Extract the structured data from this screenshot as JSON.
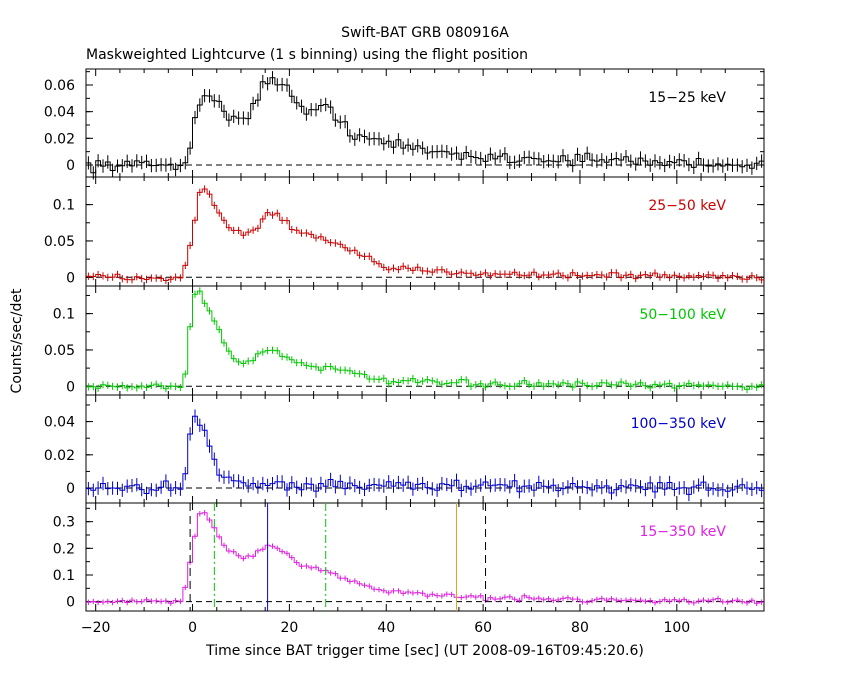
{
  "chart_data": {
    "type": "line",
    "title": "Swift-BAT GRB 080916A",
    "subtitle": "Maskweighted Lightcurve (1 s binning) using the flight position",
    "xlabel": "Time since BAT trigger time [sec] (UT 2008-09-16T09:45:20.6)",
    "ylabel": "Counts/sec/det",
    "xlim": [
      -22,
      118
    ],
    "xticks": [
      "−20",
      "0",
      "20",
      "40",
      "60",
      "80",
      "100"
    ],
    "panels": [
      {
        "name": "15−25 keV",
        "color": "#000000",
        "ylim": [
          -0.009,
          0.072
        ],
        "yticks": [
          0,
          0.02,
          0.04,
          0.06
        ],
        "ytick_labels": [
          "0",
          "0.02",
          "0.04",
          "0.06"
        ],
        "profile": [
          [
            -22,
            0.0
          ],
          [
            -1,
            0.0
          ],
          [
            0,
            0.032
          ],
          [
            1,
            0.045
          ],
          [
            3,
            0.055
          ],
          [
            5,
            0.046
          ],
          [
            7,
            0.036
          ],
          [
            11,
            0.036
          ],
          [
            13,
            0.048
          ],
          [
            15,
            0.062
          ],
          [
            18,
            0.064
          ],
          [
            20,
            0.056
          ],
          [
            22,
            0.043
          ],
          [
            25,
            0.037
          ],
          [
            27,
            0.045
          ],
          [
            29,
            0.04
          ],
          [
            33,
            0.024
          ],
          [
            40,
            0.016
          ],
          [
            50,
            0.01
          ],
          [
            60,
            0.006
          ],
          [
            80,
            0.004
          ],
          [
            118,
            0.0
          ]
        ],
        "noise": 0.005
      },
      {
        "name": "25−50 keV",
        "color": "#cc0000",
        "ylim": [
          -0.012,
          0.138
        ],
        "yticks": [
          0,
          0.05,
          0.1
        ],
        "ytick_labels": [
          "0",
          "0.05",
          "0.1"
        ],
        "profile": [
          [
            -22,
            0.0
          ],
          [
            -2,
            0.0
          ],
          [
            0,
            0.055
          ],
          [
            1,
            0.1
          ],
          [
            2,
            0.128
          ],
          [
            4,
            0.108
          ],
          [
            6,
            0.08
          ],
          [
            9,
            0.064
          ],
          [
            11,
            0.058
          ],
          [
            13,
            0.066
          ],
          [
            15,
            0.084
          ],
          [
            17,
            0.09
          ],
          [
            19,
            0.078
          ],
          [
            21,
            0.062
          ],
          [
            25,
            0.057
          ],
          [
            30,
            0.045
          ],
          [
            35,
            0.028
          ],
          [
            40,
            0.013
          ],
          [
            50,
            0.008
          ],
          [
            70,
            0.004
          ],
          [
            118,
            0.0
          ]
        ],
        "noise": 0.005
      },
      {
        "name": "50−100 keV",
        "color": "#00c800",
        "ylim": [
          -0.012,
          0.138
        ],
        "yticks": [
          0,
          0.05,
          0.1
        ],
        "ytick_labels": [
          "0",
          "0.05",
          "0.1"
        ],
        "profile": [
          [
            -22,
            0.0
          ],
          [
            -2,
            0.0
          ],
          [
            -1,
            0.04
          ],
          [
            0,
            0.12
          ],
          [
            1,
            0.133
          ],
          [
            3,
            0.11
          ],
          [
            5,
            0.085
          ],
          [
            8,
            0.04
          ],
          [
            10,
            0.03
          ],
          [
            13,
            0.04
          ],
          [
            16,
            0.052
          ],
          [
            18,
            0.046
          ],
          [
            22,
            0.032
          ],
          [
            26,
            0.025
          ],
          [
            28,
            0.03
          ],
          [
            32,
            0.018
          ],
          [
            40,
            0.007
          ],
          [
            60,
            0.003
          ],
          [
            118,
            0.0
          ]
        ],
        "noise": 0.005
      },
      {
        "name": "100−350 keV",
        "color": "#0000cc",
        "ylim": [
          -0.009,
          0.056
        ],
        "yticks": [
          0,
          0.02,
          0.04
        ],
        "ytick_labels": [
          "0",
          "0.02",
          "0.04"
        ],
        "profile": [
          [
            -22,
            0.0
          ],
          [
            -2,
            0.0
          ],
          [
            -1,
            0.022
          ],
          [
            0,
            0.047
          ],
          [
            1,
            0.04
          ],
          [
            3,
            0.032
          ],
          [
            5,
            0.012
          ],
          [
            8,
            0.005
          ],
          [
            12,
            0.002
          ],
          [
            118,
            0.0
          ]
        ],
        "noise": 0.004
      },
      {
        "name": "15−350 keV",
        "color": "#e020e0",
        "ylim": [
          -0.035,
          0.37
        ],
        "yticks": [
          0,
          0.1,
          0.2,
          0.3
        ],
        "ytick_labels": [
          "0",
          "0.1",
          "0.2",
          "0.3"
        ],
        "profile": [
          [
            -22,
            0.0
          ],
          [
            -2,
            0.0
          ],
          [
            0,
            0.2
          ],
          [
            1,
            0.3
          ],
          [
            2,
            0.35
          ],
          [
            4,
            0.29
          ],
          [
            7,
            0.2
          ],
          [
            10,
            0.16
          ],
          [
            13,
            0.18
          ],
          [
            16,
            0.21
          ],
          [
            18,
            0.19
          ],
          [
            22,
            0.14
          ],
          [
            26,
            0.12
          ],
          [
            29,
            0.11
          ],
          [
            33,
            0.075
          ],
          [
            40,
            0.04
          ],
          [
            50,
            0.025
          ],
          [
            60,
            0.015
          ],
          [
            80,
            0.008
          ],
          [
            118,
            0.0
          ]
        ],
        "noise": 0.01,
        "markers": [
          {
            "x": -0.5,
            "color": "#000000",
            "style": "dashed"
          },
          {
            "x": 60.5,
            "color": "#000000",
            "style": "dashed"
          },
          {
            "x": 4.5,
            "color": "#00c800",
            "style": "dashdot"
          },
          {
            "x": 27.5,
            "color": "#00c800",
            "style": "dashdot"
          },
          {
            "x": 15.5,
            "color": "#0000cc",
            "style": "solid"
          },
          {
            "x": 54.5,
            "color": "#e0a020",
            "style": "solid"
          }
        ]
      }
    ]
  }
}
